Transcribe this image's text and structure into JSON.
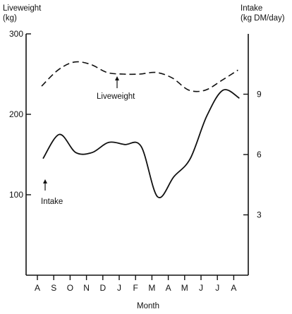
{
  "chart_data": {
    "type": "line",
    "left_axis": {
      "label_line1": "Liveweight",
      "label_line2": "(kg)",
      "ticks": [
        100,
        200,
        300
      ],
      "ylim": [
        0,
        300
      ]
    },
    "right_axis": {
      "label_line1": "Intake",
      "label_line2": "(kg DM/day)",
      "ticks": [
        3,
        6,
        9
      ],
      "ylim": [
        0,
        12
      ]
    },
    "xlabel": "Month",
    "categories": [
      "A",
      "S",
      "O",
      "N",
      "D",
      "J",
      "F",
      "M",
      "A",
      "M",
      "J",
      "J",
      "A"
    ],
    "series": [
      {
        "name": "Liveweight",
        "axis": "left",
        "style": "dashed",
        "values": [
          235,
          255,
          265,
          262,
          252,
          250,
          250,
          252,
          245,
          230,
          230,
          242,
          255
        ]
      },
      {
        "name": "Intake",
        "axis": "right",
        "style": "solid",
        "values": [
          5.8,
          7.0,
          6.1,
          6.1,
          6.6,
          6.5,
          6.4,
          3.9,
          4.9,
          5.8,
          7.9,
          9.2,
          8.8
        ]
      }
    ]
  }
}
